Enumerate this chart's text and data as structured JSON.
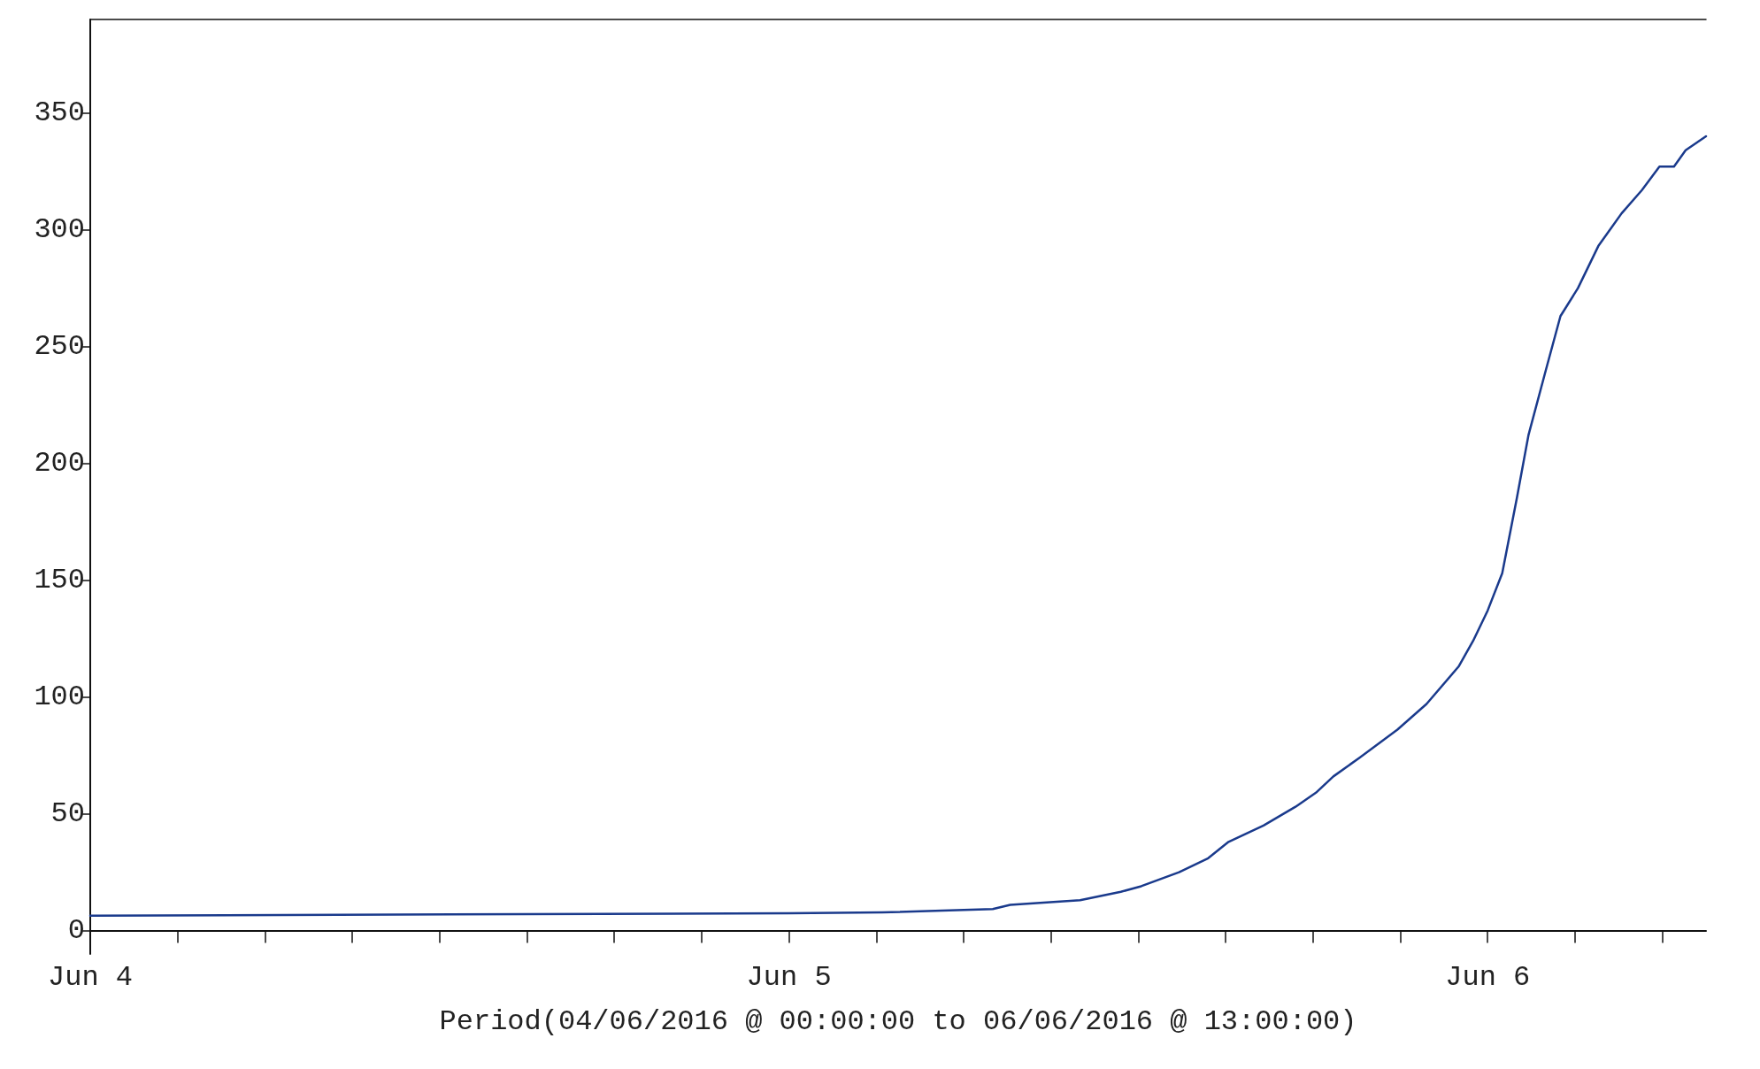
{
  "chart_data": {
    "type": "line",
    "xlabel": "Period(04/06/2016 @ 00:00:00 to 06/06/2016 @ 13:00:00)",
    "x": [
      "2016-06-04T00:00",
      "2016-06-05T00:00",
      "2016-06-05T03:12",
      "2016-06-05T07:00",
      "2016-06-05T07:36",
      "2016-06-05T10:00",
      "2016-06-05T11:24",
      "2016-06-05T12:06",
      "2016-06-05T13:24",
      "2016-06-05T14:24",
      "2016-06-05T15:06",
      "2016-06-05T16:18",
      "2016-06-05T17:24",
      "2016-06-05T18:06",
      "2016-06-05T18:42",
      "2016-06-05T19:36",
      "2016-06-05T20:54",
      "2016-06-05T21:54",
      "2016-06-05T23:00",
      "2016-06-05T23:30",
      "2016-06-06T00:00",
      "2016-06-06T00:30",
      "2016-06-06T01:00",
      "2016-06-06T01:24",
      "2016-06-06T02:00",
      "2016-06-06T02:30",
      "2016-06-06T03:06",
      "2016-06-06T03:48",
      "2016-06-06T04:36",
      "2016-06-06T05:18",
      "2016-06-06T05:54",
      "2016-06-06T06:24",
      "2016-06-06T06:48",
      "2016-06-06T07:30"
    ],
    "series": [
      {
        "color": "#1a3a8c",
        "values": [
          6.4,
          7.4,
          7.8,
          9.2,
          11,
          13,
          16.6,
          19,
          25,
          31,
          38,
          45,
          53,
          59,
          66,
          74,
          86,
          97,
          113,
          124,
          137,
          153,
          185,
          212,
          240,
          263,
          275,
          293,
          307,
          317,
          327,
          327,
          334,
          340
        ]
      }
    ],
    "xlim": [
      "2016-06-04T00:00",
      "2016-06-06T07:30"
    ],
    "xticks": [
      {
        "value": "2016-06-04T00:00",
        "label": "Jun 4"
      },
      {
        "value": "2016-06-04T03:00",
        "label": null
      },
      {
        "value": "2016-06-04T06:00",
        "label": null
      },
      {
        "value": "2016-06-04T09:00",
        "label": null
      },
      {
        "value": "2016-06-04T12:00",
        "label": null
      },
      {
        "value": "2016-06-04T15:00",
        "label": null
      },
      {
        "value": "2016-06-04T18:00",
        "label": null
      },
      {
        "value": "2016-06-04T21:00",
        "label": null
      },
      {
        "value": "2016-06-05T00:00",
        "label": "Jun 5"
      },
      {
        "value": "2016-06-05T03:00",
        "label": null
      },
      {
        "value": "2016-06-05T06:00",
        "label": null
      },
      {
        "value": "2016-06-05T09:00",
        "label": null
      },
      {
        "value": "2016-06-05T12:00",
        "label": null
      },
      {
        "value": "2016-06-05T15:00",
        "label": null
      },
      {
        "value": "2016-06-05T18:00",
        "label": null
      },
      {
        "value": "2016-06-05T21:00",
        "label": null
      },
      {
        "value": "2016-06-06T00:00",
        "label": "Jun 6"
      },
      {
        "value": "2016-06-06T03:00",
        "label": null
      },
      {
        "value": "2016-06-06T06:00",
        "label": null
      }
    ],
    "ylim": [
      -10,
      390
    ],
    "yticks": [
      0,
      50,
      100,
      150,
      200,
      250,
      300,
      350
    ],
    "grid": false,
    "marker": "none",
    "line_style": "solid"
  }
}
